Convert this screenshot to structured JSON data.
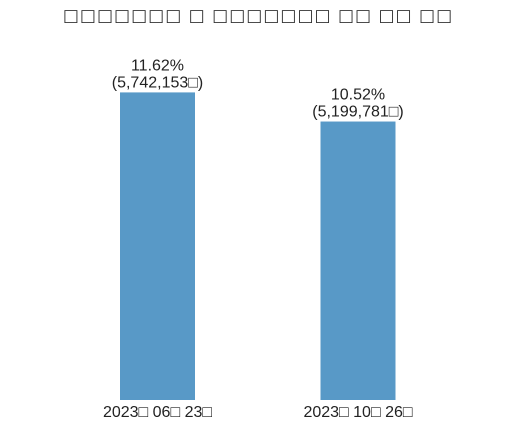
{
  "chart_data": {
    "type": "bar",
    "title": "□□□□□□□ □ □□□□□□□ □□ □□ □□",
    "categories": [
      "2023□ 06□ 23□",
      "2023□ 10□ 26□"
    ],
    "values": [
      11.62,
      10.52
    ],
    "value_unit": "%",
    "data_labels": [
      {
        "line1": "11.62%",
        "line2": "(5,742,153□)"
      },
      {
        "line1": "10.52%",
        "line2": "(5,199,781□)"
      }
    ],
    "ylim": [
      0,
      13.6
    ],
    "bar_color": "#5899c7",
    "grid": false,
    "legend": "none"
  }
}
